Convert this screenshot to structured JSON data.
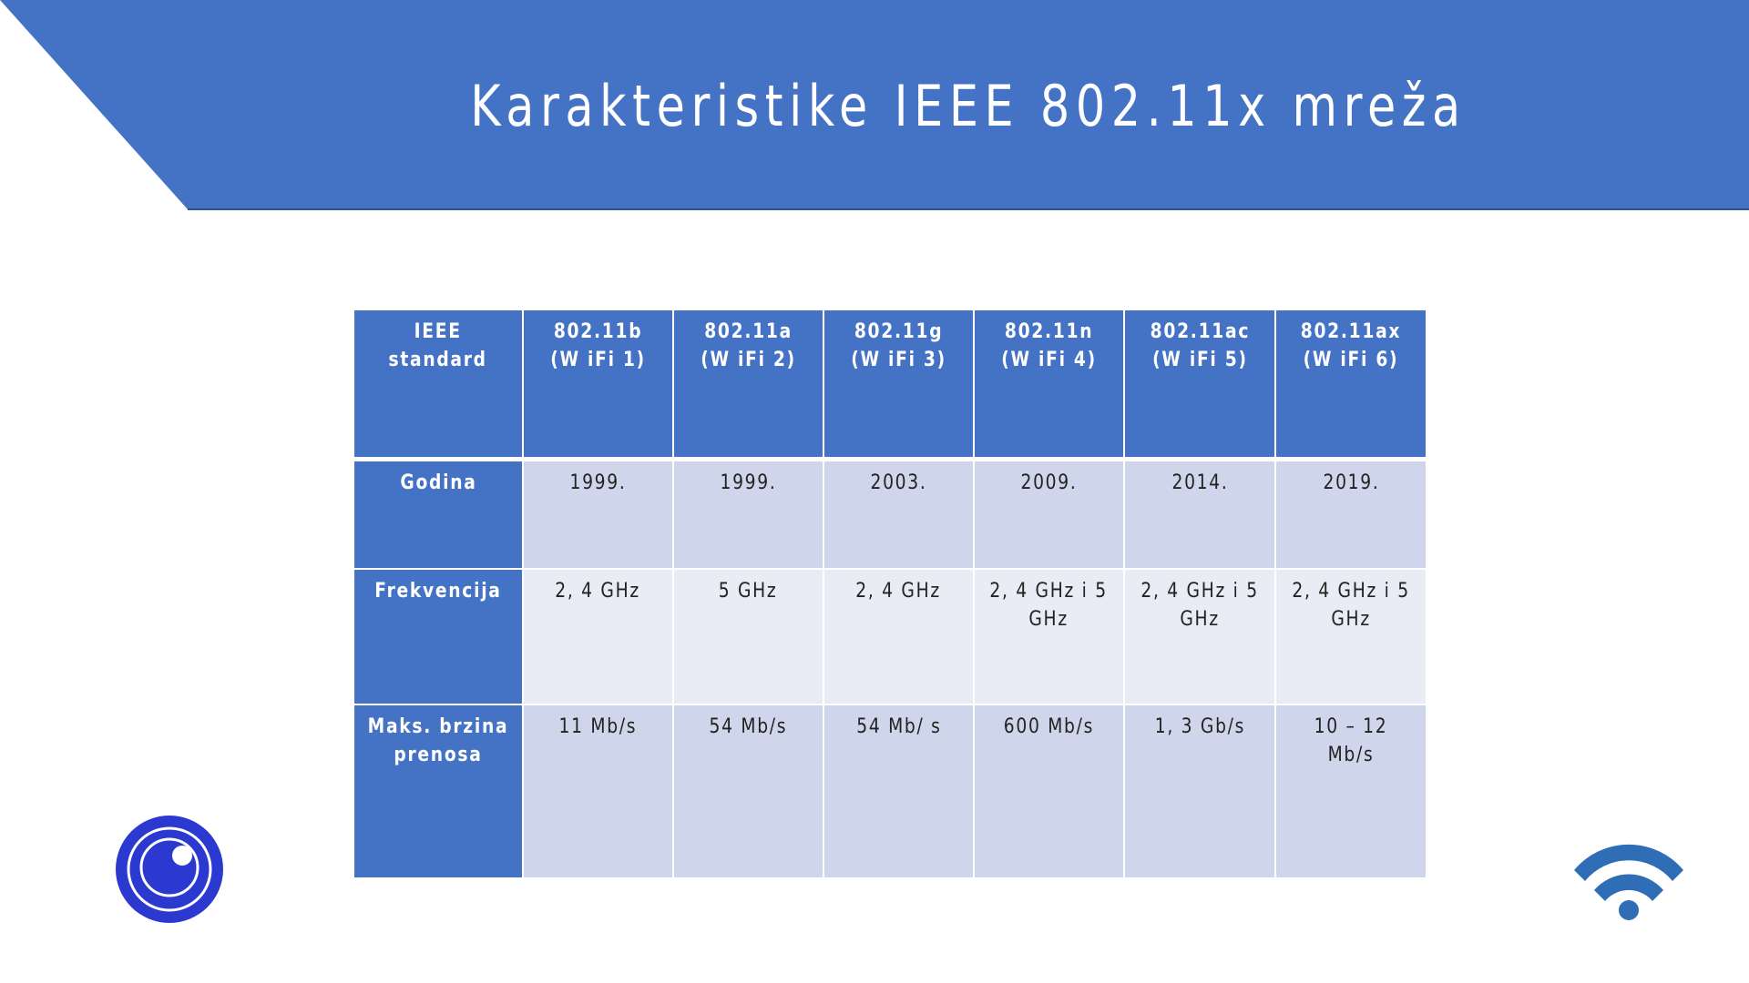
{
  "slide": {
    "title": "Karakteristike IEEE 802.11x mreža"
  },
  "colors": {
    "banner": "#4472c4",
    "header_cell": "#4472c4",
    "row_dark": "#cfd5ea",
    "row_light": "#e9ebf5",
    "logo": "#2b39d1",
    "wifi": "#2f6db7"
  },
  "icons": {
    "logo": "target-lens-logo-icon",
    "wifi": "wifi-icon"
  },
  "table": {
    "header": {
      "label": [
        "IEEE",
        "standard"
      ],
      "columns": [
        [
          "802.11b",
          "(W iFi 1)"
        ],
        [
          "802.11a",
          "(W iFi 2)"
        ],
        [
          "802.11g",
          "(W iFi 3)"
        ],
        [
          "802.11n",
          "(W iFi 4)"
        ],
        [
          "802.11ac",
          "(W iFi 5)"
        ],
        [
          "802.11ax",
          "(W iFi 6)"
        ]
      ]
    },
    "rows": [
      {
        "label": [
          "Godina"
        ],
        "cells": [
          [
            "1999."
          ],
          [
            "1999."
          ],
          [
            "2003."
          ],
          [
            "2009."
          ],
          [
            "2014."
          ],
          [
            "2019."
          ]
        ]
      },
      {
        "label": [
          "Frekvencija"
        ],
        "cells": [
          [
            "2, 4 GHz"
          ],
          [
            "5 GHz"
          ],
          [
            "2, 4 GHz"
          ],
          [
            "2, 4 GHz i 5",
            "GHz"
          ],
          [
            "2, 4 GHz i 5",
            "GHz"
          ],
          [
            "2, 4 GHz i 5",
            "GHz"
          ]
        ]
      },
      {
        "label": [
          "Maks. brzina",
          "prenosa"
        ],
        "cells": [
          [
            "11 Mb/s"
          ],
          [
            "54 Mb/s"
          ],
          [
            "54 Mb/ s"
          ],
          [
            "600 Mb/s"
          ],
          [
            "1, 3 Gb/s"
          ],
          [
            "10 – 12 Mb/s"
          ]
        ]
      }
    ]
  }
}
